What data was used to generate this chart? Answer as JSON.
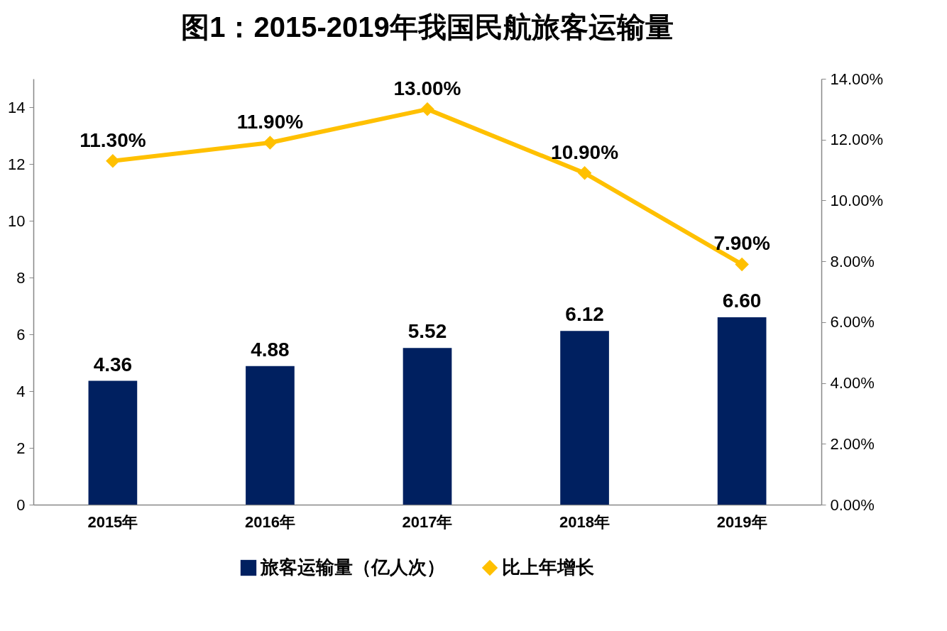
{
  "chart_data": {
    "type": "bar",
    "title": "图1：2015-2019年我国民航旅客运输量",
    "categories": [
      "2015年",
      "2016年",
      "2017年",
      "2018年",
      "2019年"
    ],
    "series": [
      {
        "name": "旅客运输量（亿人次）",
        "color": "#002060",
        "values": [
          4.36,
          4.88,
          5.52,
          6.12,
          6.6
        ],
        "value_labels": [
          "4.36",
          "4.88",
          "5.52",
          "6.12",
          "6.60"
        ]
      },
      {
        "name": "比上年增长",
        "type": "line",
        "axis": "y2",
        "color": "#ffc000",
        "values": [
          11.3,
          11.9,
          13.0,
          10.9,
          7.9
        ],
        "value_labels": [
          "11.30%",
          "11.90%",
          "13.00%",
          "10.90%",
          "7.90%"
        ]
      }
    ],
    "ylim": [
      0,
      15
    ],
    "yticks": [
      0,
      2,
      4,
      6,
      8,
      10,
      12,
      14
    ],
    "y2lim": [
      0,
      14
    ],
    "y2ticks": [
      {
        "value": 0,
        "label": "0.00%"
      },
      {
        "value": 2,
        "label": "2.00%"
      },
      {
        "value": 4,
        "label": "4.00%"
      },
      {
        "value": 6,
        "label": "6.00%"
      },
      {
        "value": 8,
        "label": "8.00%"
      },
      {
        "value": 10,
        "label": "10.00%"
      },
      {
        "value": 12,
        "label": "12.00%"
      },
      {
        "value": 14,
        "label": "14.00%"
      }
    ],
    "marker": "diamond",
    "legend": "bottom",
    "grid": false
  }
}
